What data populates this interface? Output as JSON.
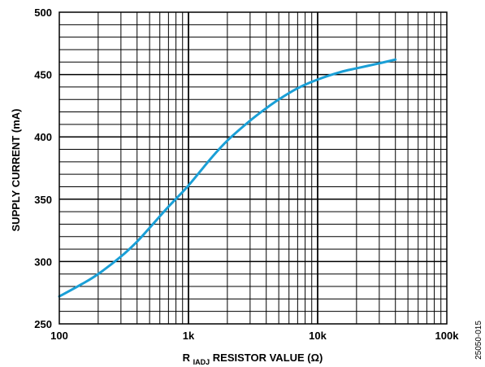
{
  "chart_data": {
    "type": "line",
    "xscale": "log",
    "xlim": [
      100,
      100000
    ],
    "ylim": [
      250,
      500
    ],
    "grid": true,
    "xlabel": {
      "main": "R",
      "subscript": "IADJ",
      "rest": " RESISTOR VALUE (Ω)"
    },
    "ylabel": "SUPPLY CURRENT (mA)",
    "xticks": [
      {
        "value": 100,
        "label": "100"
      },
      {
        "value": 1000,
        "label": "1k"
      },
      {
        "value": 10000,
        "label": "10k"
      },
      {
        "value": 100000,
        "label": "100k"
      }
    ],
    "yticks": [
      {
        "value": 250,
        "label": "250"
      },
      {
        "value": 300,
        "label": "300"
      },
      {
        "value": 350,
        "label": "350"
      },
      {
        "value": 400,
        "label": "400"
      },
      {
        "value": 450,
        "label": "450"
      },
      {
        "value": 500,
        "label": "500"
      }
    ],
    "series": [
      {
        "color": "#1a9fd6",
        "x": [
          100,
          150,
          200,
          300,
          400,
          500,
          700,
          1000,
          1500,
          2000,
          3000,
          4000,
          5000,
          7000,
          10000,
          15000,
          20000,
          30000,
          40000
        ],
        "y": [
          272,
          282,
          290,
          304,
          316,
          327,
          344,
          361,
          383,
          397,
          413,
          423,
          430,
          439,
          446,
          452,
          455,
          459,
          462
        ]
      }
    ]
  },
  "figure_id": "25050-015"
}
